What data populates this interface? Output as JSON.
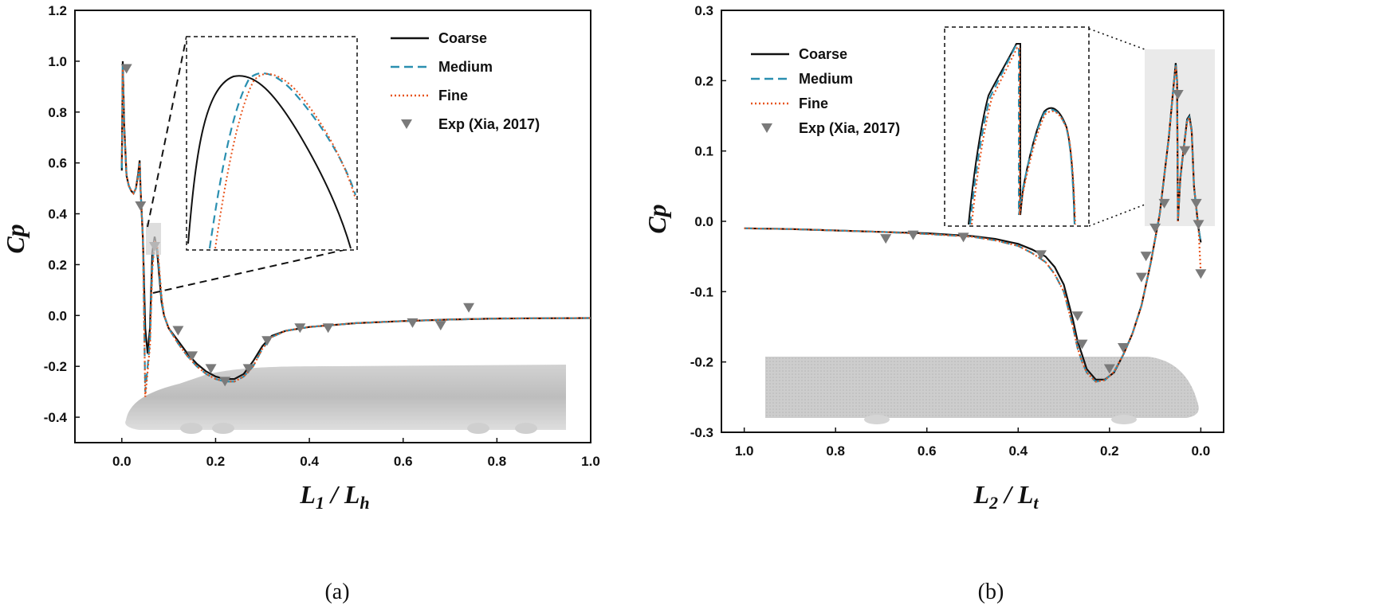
{
  "chart_data": [
    {
      "type": "line",
      "panel_label": "(a)",
      "xlabel_main": "L",
      "xlabel_sub1": "1",
      "xlabel_sep": " / ",
      "xlabel_main2": "L",
      "xlabel_sub2": "h",
      "ylabel": "Cp",
      "xlim": [
        -0.1,
        1.0
      ],
      "ylim": [
        -0.5,
        1.2
      ],
      "xticks": [
        "0.0",
        "0.2",
        "0.4",
        "0.6",
        "0.8",
        "1.0"
      ],
      "xtick_values": [
        0.0,
        0.2,
        0.4,
        0.6,
        0.8,
        1.0
      ],
      "yticks": [
        "-0.4",
        "-0.2",
        "0.0",
        "0.2",
        "0.4",
        "0.6",
        "0.8",
        "1.0",
        "1.2"
      ],
      "ytick_values": [
        -0.4,
        -0.2,
        0.0,
        0.2,
        0.4,
        0.6,
        0.8,
        1.0,
        1.2
      ],
      "legend": [
        "Coarse",
        "Medium",
        "Fine",
        "Exp (Xia, 2017)"
      ],
      "series": [
        {
          "name": "Coarse",
          "style": "solid",
          "color": "#111111",
          "x": [
            0.0,
            0.002,
            0.005,
            0.01,
            0.015,
            0.02,
            0.025,
            0.03,
            0.035,
            0.038,
            0.04,
            0.045,
            0.05,
            0.055,
            0.06,
            0.065,
            0.07,
            0.075,
            0.08,
            0.085,
            0.09,
            0.1,
            0.12,
            0.14,
            0.16,
            0.18,
            0.2,
            0.22,
            0.24,
            0.26,
            0.28,
            0.3,
            0.32,
            0.35,
            0.4,
            0.5,
            0.6,
            0.7,
            0.8,
            1.0
          ],
          "y": [
            0.57,
            1.0,
            0.75,
            0.55,
            0.51,
            0.49,
            0.48,
            0.5,
            0.56,
            0.61,
            0.5,
            0.3,
            -0.05,
            -0.15,
            -0.05,
            0.25,
            0.31,
            0.26,
            0.15,
            0.05,
            0.0,
            -0.05,
            -0.1,
            -0.15,
            -0.19,
            -0.22,
            -0.24,
            -0.25,
            -0.25,
            -0.23,
            -0.18,
            -0.12,
            -0.08,
            -0.06,
            -0.045,
            -0.03,
            -0.022,
            -0.016,
            -0.012,
            -0.01
          ]
        },
        {
          "name": "Medium",
          "style": "dashed",
          "color": "#2a8fb0",
          "x": [
            0.0,
            0.002,
            0.005,
            0.01,
            0.015,
            0.02,
            0.025,
            0.03,
            0.035,
            0.038,
            0.04,
            0.045,
            0.05,
            0.055,
            0.06,
            0.065,
            0.07,
            0.075,
            0.08,
            0.085,
            0.09,
            0.1,
            0.12,
            0.14,
            0.16,
            0.18,
            0.2,
            0.22,
            0.24,
            0.26,
            0.28,
            0.3,
            0.32,
            0.35,
            0.4,
            0.5,
            0.6,
            0.7,
            0.8,
            1.0
          ],
          "y": [
            0.58,
            0.98,
            0.74,
            0.55,
            0.51,
            0.49,
            0.48,
            0.5,
            0.55,
            0.6,
            0.5,
            0.3,
            -0.3,
            -0.2,
            -0.1,
            0.2,
            0.29,
            0.28,
            0.17,
            0.06,
            0.0,
            -0.05,
            -0.11,
            -0.16,
            -0.2,
            -0.23,
            -0.25,
            -0.26,
            -0.26,
            -0.24,
            -0.2,
            -0.13,
            -0.085,
            -0.06,
            -0.045,
            -0.03,
            -0.022,
            -0.016,
            -0.012,
            -0.01
          ]
        },
        {
          "name": "Fine",
          "style": "dotted",
          "color": "#e8541c",
          "x": [
            0.0,
            0.002,
            0.005,
            0.01,
            0.015,
            0.02,
            0.025,
            0.03,
            0.035,
            0.038,
            0.04,
            0.045,
            0.05,
            0.055,
            0.06,
            0.065,
            0.07,
            0.075,
            0.08,
            0.085,
            0.09,
            0.1,
            0.12,
            0.14,
            0.16,
            0.18,
            0.2,
            0.22,
            0.24,
            0.26,
            0.28,
            0.3,
            0.32,
            0.35,
            0.4,
            0.5,
            0.6,
            0.7,
            0.8,
            1.0
          ],
          "y": [
            0.6,
            0.97,
            0.74,
            0.55,
            0.51,
            0.49,
            0.48,
            0.5,
            0.55,
            0.6,
            0.5,
            0.3,
            -0.32,
            -0.22,
            -0.12,
            0.18,
            0.29,
            0.29,
            0.18,
            0.07,
            0.0,
            -0.05,
            -0.11,
            -0.16,
            -0.2,
            -0.23,
            -0.25,
            -0.26,
            -0.26,
            -0.24,
            -0.2,
            -0.13,
            -0.085,
            -0.06,
            -0.045,
            -0.03,
            -0.022,
            -0.016,
            -0.012,
            -0.01
          ]
        },
        {
          "name": "Exp (Xia, 2017)",
          "style": "marker",
          "color": "#7a7a7a",
          "x": [
            0.01,
            0.04,
            0.07,
            0.12,
            0.15,
            0.19,
            0.22,
            0.27,
            0.31,
            0.38,
            0.44,
            0.62,
            0.68,
            0.74
          ],
          "y": [
            0.97,
            0.43,
            0.27,
            -0.06,
            -0.16,
            -0.21,
            -0.26,
            -0.21,
            -0.1,
            -0.05,
            -0.05,
            -0.03,
            -0.04,
            0.03
          ]
        }
      ],
      "inset": {
        "description": "zoom of peak near L1/Lh ~ 0.07"
      }
    },
    {
      "type": "line",
      "panel_label": "(b)",
      "xlabel_main": "L",
      "xlabel_sub1": "2",
      "xlabel_sep": " / ",
      "xlabel_main2": "L",
      "xlabel_sub2": "t",
      "ylabel": "Cp",
      "xlim": [
        1.05,
        -0.05
      ],
      "ylim": [
        -0.3,
        0.3
      ],
      "xticks": [
        "1.0",
        "0.8",
        "0.6",
        "0.4",
        "0.2",
        "0.0"
      ],
      "xtick_values": [
        1.0,
        0.8,
        0.6,
        0.4,
        0.2,
        0.0
      ],
      "yticks": [
        "-0.3",
        "-0.2",
        "-0.1",
        "0.0",
        "0.1",
        "0.2",
        "0.3"
      ],
      "ytick_values": [
        -0.3,
        -0.2,
        -0.1,
        0.0,
        0.1,
        0.2,
        0.3
      ],
      "legend": [
        "Coarse",
        "Medium",
        "Fine",
        "Exp (Xia, 2017)"
      ],
      "series": [
        {
          "name": "Coarse",
          "style": "solid",
          "color": "#111111",
          "x": [
            1.0,
            0.9,
            0.8,
            0.7,
            0.6,
            0.5,
            0.45,
            0.4,
            0.37,
            0.34,
            0.32,
            0.3,
            0.28,
            0.27,
            0.26,
            0.25,
            0.23,
            0.21,
            0.19,
            0.17,
            0.15,
            0.13,
            0.11,
            0.09,
            0.07,
            0.06,
            0.055,
            0.052,
            0.05,
            0.045,
            0.04,
            0.03,
            0.025,
            0.02,
            0.015,
            0.01,
            0.005,
            0.0
          ],
          "y": [
            -0.01,
            -0.011,
            -0.013,
            -0.015,
            -0.017,
            -0.021,
            -0.025,
            -0.032,
            -0.04,
            -0.05,
            -0.065,
            -0.09,
            -0.14,
            -0.17,
            -0.19,
            -0.21,
            -0.225,
            -0.225,
            -0.215,
            -0.19,
            -0.16,
            -0.12,
            -0.06,
            0.01,
            0.12,
            0.19,
            0.225,
            0.2,
            0.0,
            0.06,
            0.09,
            0.145,
            0.15,
            0.13,
            0.05,
            0.02,
            -0.01,
            -0.03
          ]
        },
        {
          "name": "Medium",
          "style": "dashed",
          "color": "#2a8fb0",
          "x": [
            1.0,
            0.9,
            0.8,
            0.7,
            0.6,
            0.5,
            0.45,
            0.4,
            0.37,
            0.34,
            0.32,
            0.3,
            0.28,
            0.27,
            0.26,
            0.25,
            0.23,
            0.21,
            0.19,
            0.17,
            0.15,
            0.13,
            0.11,
            0.09,
            0.07,
            0.06,
            0.055,
            0.052,
            0.05,
            0.045,
            0.04,
            0.03,
            0.025,
            0.02,
            0.015,
            0.01,
            0.005,
            0.0
          ],
          "y": [
            -0.01,
            -0.011,
            -0.013,
            -0.015,
            -0.018,
            -0.022,
            -0.027,
            -0.035,
            -0.045,
            -0.058,
            -0.075,
            -0.1,
            -0.15,
            -0.18,
            -0.2,
            -0.215,
            -0.228,
            -0.226,
            -0.214,
            -0.19,
            -0.16,
            -0.12,
            -0.06,
            0.01,
            0.12,
            0.19,
            0.222,
            0.2,
            0.0,
            0.06,
            0.09,
            0.143,
            0.148,
            0.128,
            0.05,
            0.02,
            -0.01,
            -0.03
          ]
        },
        {
          "name": "Fine",
          "style": "dotted",
          "color": "#e8541c",
          "x": [
            1.0,
            0.9,
            0.8,
            0.7,
            0.6,
            0.5,
            0.45,
            0.4,
            0.37,
            0.34,
            0.32,
            0.3,
            0.28,
            0.27,
            0.26,
            0.25,
            0.23,
            0.21,
            0.19,
            0.17,
            0.15,
            0.13,
            0.11,
            0.09,
            0.07,
            0.06,
            0.055,
            0.052,
            0.05,
            0.045,
            0.04,
            0.03,
            0.025,
            0.02,
            0.015,
            0.01,
            0.005,
            0.0
          ],
          "y": [
            -0.01,
            -0.011,
            -0.013,
            -0.015,
            -0.018,
            -0.022,
            -0.027,
            -0.035,
            -0.045,
            -0.058,
            -0.075,
            -0.1,
            -0.15,
            -0.18,
            -0.2,
            -0.215,
            -0.228,
            -0.226,
            -0.214,
            -0.19,
            -0.16,
            -0.12,
            -0.06,
            0.01,
            0.12,
            0.19,
            0.22,
            0.2,
            0.0,
            0.06,
            0.09,
            0.142,
            0.147,
            0.127,
            0.05,
            0.02,
            -0.01,
            -0.075
          ]
        },
        {
          "name": "Exp (Xia, 2017)",
          "style": "marker",
          "color": "#7a7a7a",
          "x": [
            0.69,
            0.63,
            0.52,
            0.35,
            0.27,
            0.26,
            0.2,
            0.17,
            0.13,
            0.12,
            0.1,
            0.08,
            0.05,
            0.035,
            0.01,
            0.005,
            0.0
          ],
          "y": [
            -0.025,
            -0.02,
            -0.023,
            -0.048,
            -0.135,
            -0.175,
            -0.21,
            -0.18,
            -0.08,
            -0.05,
            -0.01,
            0.025,
            0.18,
            0.1,
            0.025,
            -0.005,
            -0.075
          ]
        }
      ],
      "inset": {
        "description": "zoom of region near L2/Lt ~ 0.02-0.09"
      }
    }
  ]
}
